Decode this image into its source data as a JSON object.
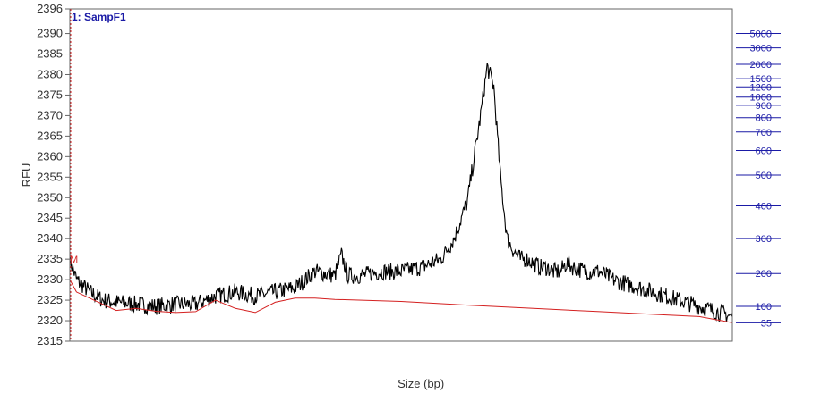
{
  "chart_data": {
    "type": "line",
    "title": "",
    "sample_label": "1: SampF1",
    "ylabel": "RFU",
    "xlabel": "Size (bp)",
    "ylim": [
      2315,
      2396
    ],
    "y_ticks": [
      2396,
      2390,
      2385,
      2380,
      2375,
      2370,
      2365,
      2360,
      2355,
      2350,
      2345,
      2340,
      2335,
      2330,
      2325,
      2320,
      2315
    ],
    "marker_label": "M",
    "size_ladder": {
      "labels": [
        "5000",
        "3000",
        "2000",
        "1500",
        "1200",
        "1000",
        "900",
        "800",
        "700",
        "600",
        "500",
        "400",
        "300",
        "200",
        "100",
        "35"
      ],
      "rfu_levels": [
        2390,
        2386.5,
        2382.5,
        2379,
        2377,
        2374.5,
        2372.5,
        2369.5,
        2366,
        2361.5,
        2355.5,
        2348,
        2340,
        2331.5,
        2323.5,
        2319.5
      ]
    },
    "series": [
      {
        "x_fraction": [
          0,
          0.01,
          0.03,
          0.05,
          0.07,
          0.1,
          0.13,
          0.16,
          0.19,
          0.22,
          0.25,
          0.28,
          0.31,
          0.34,
          0.37,
          0.4,
          0.41,
          0.42,
          0.44,
          0.47,
          0.5,
          0.53,
          0.56,
          0.58,
          0.6,
          0.62,
          0.63,
          0.64,
          0.65,
          0.66,
          0.67,
          0.68,
          0.69,
          0.7,
          0.71,
          0.72,
          0.73,
          0.74,
          0.75,
          0.76,
          0.78,
          0.8,
          0.82,
          0.84,
          0.86,
          0.88,
          0.9,
          0.92,
          0.94,
          0.96,
          0.98,
          1.0
        ],
        "values": [
          2335,
          2330,
          2327,
          2325,
          2324.5,
          2324,
          2323.5,
          2324,
          2324,
          2326,
          2327,
          2326,
          2327,
          2328,
          2332,
          2331,
          2336,
          2331,
          2331,
          2332,
          2332,
          2333,
          2335,
          2340,
          2349,
          2370,
          2382,
          2377,
          2355,
          2340,
          2337,
          2335,
          2335,
          2334,
          2333,
          2333,
          2332,
          2332,
          2334,
          2333,
          2332,
          2332,
          2330,
          2329,
          2328,
          2327,
          2326,
          2325,
          2324,
          2323,
          2322,
          2321
        ]
      },
      {
        "x_fraction": [
          0,
          0.01,
          0.07,
          0.1,
          0.13,
          0.16,
          0.19,
          0.22,
          0.25,
          0.28,
          0.31,
          0.34,
          0.37,
          0.4,
          0.5,
          0.6,
          0.7,
          0.8,
          0.9,
          0.95,
          1.0
        ],
        "values": [
          2330,
          2327,
          2322.5,
          2323,
          2322.3,
          2322,
          2322.2,
          2325,
          2323,
          2322,
          2324.5,
          2325.5,
          2325.5,
          2325.2,
          2324.7,
          2323.8,
          2323,
          2322.2,
          2321.4,
          2321,
          2319.5
        ]
      }
    ],
    "grid": false,
    "legend": "none",
    "colors": {
      "signal": "#000000",
      "baseline": "#d42020",
      "size_ladder": "#1a1aa6",
      "axis": "#666666"
    }
  }
}
